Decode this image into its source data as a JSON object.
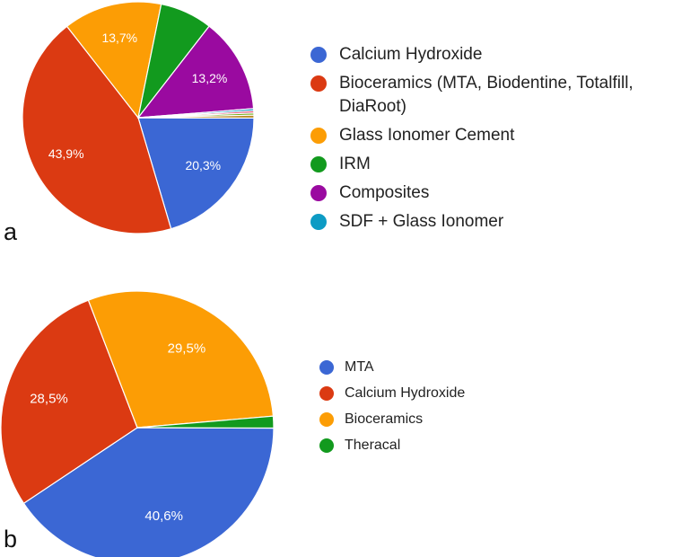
{
  "chart_data": [
    {
      "panel": "a",
      "type": "pie",
      "slices": [
        {
          "name": "Calcium Hydroxide",
          "value": 20.3,
          "label": "20,3%",
          "color": "#3b67d4"
        },
        {
          "name": "Bioceramics (MTA, Biodentine, Totalfill, DiaRoot)",
          "value": 43.9,
          "label": "43,9%",
          "color": "#db3a12"
        },
        {
          "name": "Glass Ionomer Cement",
          "value": 13.7,
          "label": "13,7%",
          "color": "#fc9d05"
        },
        {
          "name": "IRM",
          "value": 7.3,
          "label": "",
          "color": "#129a1e"
        },
        {
          "name": "Composites",
          "value": 13.2,
          "label": "13,2%",
          "color": "#9a0aa0"
        },
        {
          "name": "",
          "value": 0.3,
          "label": "",
          "color": "#0d8fbf"
        },
        {
          "name": "",
          "value": 0.3,
          "label": "",
          "color": "#de4571"
        },
        {
          "name": "",
          "value": 0.3,
          "label": "",
          "color": "#6ea90f"
        },
        {
          "name": "",
          "value": 0.4,
          "label": "",
          "color": "#b88a28"
        }
      ],
      "legend": [
        {
          "name": "Calcium Hydroxide",
          "color": "#3b67d4"
        },
        {
          "name": "Bioceramics (MTA, Biodentine, Totalfill, DiaRoot)",
          "color": "#db3a12"
        },
        {
          "name": "Glass Ionomer Cement",
          "color": "#fc9d05"
        },
        {
          "name": "IRM",
          "color": "#129a1e"
        },
        {
          "name": "Composites",
          "color": "#9a0aa0"
        },
        {
          "name": "SDF + Glass Ionomer",
          "color": "#0d9bc4"
        }
      ],
      "legend_position": "right"
    },
    {
      "panel": "b",
      "type": "pie",
      "slices": [
        {
          "name": "MTA",
          "value": 40.6,
          "label": "40,6%",
          "color": "#3b67d4"
        },
        {
          "name": "Calcium Hydroxide",
          "value": 28.5,
          "label": "28,5%",
          "color": "#db3a12"
        },
        {
          "name": "Bioceramics",
          "value": 29.5,
          "label": "29,5%",
          "color": "#fc9d05"
        },
        {
          "name": "Theracal",
          "value": 1.4,
          "label": "",
          "color": "#129a1e"
        }
      ],
      "legend": [
        {
          "name": "MTA",
          "color": "#3b67d4"
        },
        {
          "name": "Calcium Hydroxide",
          "color": "#db3a12"
        },
        {
          "name": "Bioceramics",
          "color": "#fc9d05"
        },
        {
          "name": "Theracal",
          "color": "#129a1e"
        }
      ],
      "legend_position": "right"
    }
  ],
  "panel_letters": {
    "a": "a",
    "b": "b"
  }
}
